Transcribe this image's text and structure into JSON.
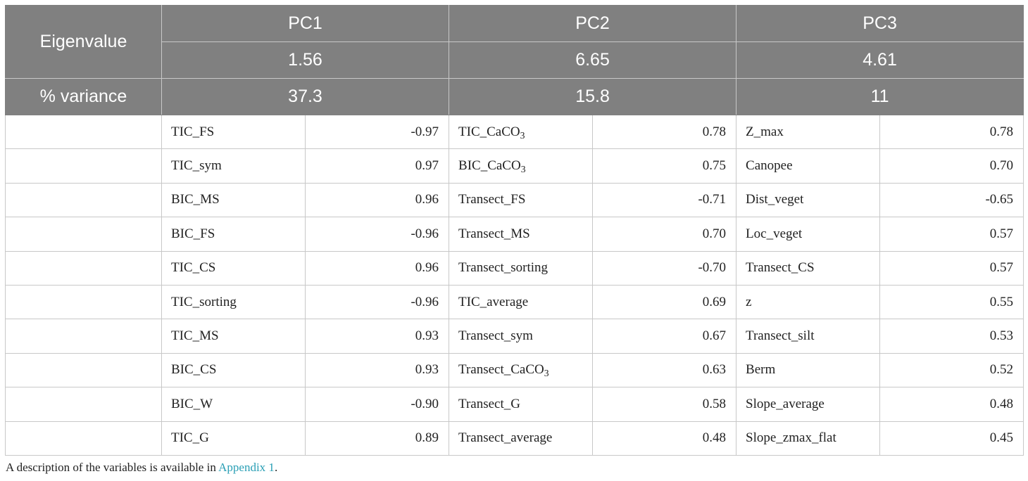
{
  "header": {
    "eigenvalue_label": "Eigenvalue",
    "variance_label": "% variance",
    "components": [
      {
        "name": "PC1",
        "eigenvalue": "1.56",
        "variance": "37.3"
      },
      {
        "name": "PC2",
        "eigenvalue": "6.65",
        "variance": "15.8"
      },
      {
        "name": "PC3",
        "eigenvalue": "4.61",
        "variance": "11"
      }
    ]
  },
  "rows": [
    [
      {
        "var": "TIC_FS",
        "val": "-0.97"
      },
      {
        "var": "TIC_CaCO",
        "sub": "3",
        "val": "0.78"
      },
      {
        "var": "Z_max",
        "val": "0.78"
      }
    ],
    [
      {
        "var": "TIC_sym",
        "val": "0.97"
      },
      {
        "var": "BIC_CaCO",
        "sub": "3",
        "val": "0.75"
      },
      {
        "var": "Canopee",
        "val": "0.70"
      }
    ],
    [
      {
        "var": "BIC_MS",
        "val": "0.96"
      },
      {
        "var": "Transect_FS",
        "val": "-0.71"
      },
      {
        "var": "Dist_veget",
        "val": "-0.65"
      }
    ],
    [
      {
        "var": "BIC_FS",
        "val": "-0.96"
      },
      {
        "var": "Transect_MS",
        "val": "0.70"
      },
      {
        "var": "Loc_veget",
        "val": "0.57"
      }
    ],
    [
      {
        "var": "TIC_CS",
        "val": "0.96"
      },
      {
        "var": "Transect_sorting",
        "val": "-0.70"
      },
      {
        "var": "Transect_CS",
        "val": "0.57"
      }
    ],
    [
      {
        "var": "TIC_sorting",
        "val": "-0.96"
      },
      {
        "var": "TIC_average",
        "val": "0.69"
      },
      {
        "var": "z",
        "val": "0.55"
      }
    ],
    [
      {
        "var": "TIC_MS",
        "val": "0.93"
      },
      {
        "var": "Transect_sym",
        "val": "0.67"
      },
      {
        "var": "Transect_silt",
        "val": "0.53"
      }
    ],
    [
      {
        "var": "BIC_CS",
        "val": "0.93"
      },
      {
        "var": "Transect_CaCO",
        "sub": "3",
        "val": "0.63"
      },
      {
        "var": "Berm",
        "val": "0.52"
      }
    ],
    [
      {
        "var": "BIC_W",
        "val": "-0.90"
      },
      {
        "var": "Transect_G",
        "val": "0.58"
      },
      {
        "var": "Slope_average",
        "val": "0.48"
      }
    ],
    [
      {
        "var": "TIC_G",
        "val": "0.89"
      },
      {
        "var": "Transect_average",
        "val": "0.48"
      },
      {
        "var": "Slope_zmax_flat",
        "val": "0.45"
      }
    ]
  ],
  "footnote": {
    "text": "A description of the variables is available in ",
    "link": "Appendix 1",
    "end": "."
  },
  "colors": {
    "header_bg": "#808080",
    "header_text": "#ffffff",
    "link": "#2a9fb5",
    "grid": "#c8c8c8"
  }
}
